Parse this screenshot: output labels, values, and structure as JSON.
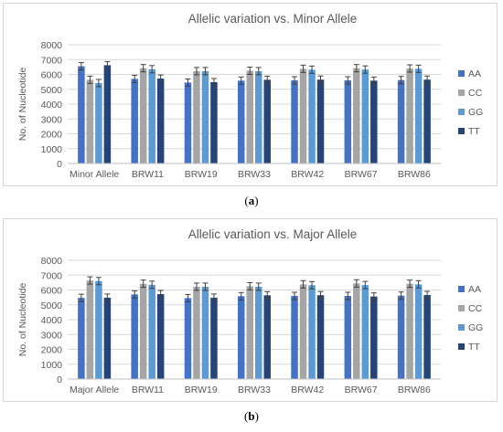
{
  "chart_data": [
    {
      "type": "bar",
      "title": "Allelic variation vs. Minor Allele",
      "ylabel": "No. of Nucleotide",
      "xlabel": "",
      "ylim": [
        0,
        8000
      ],
      "yticks": [
        0,
        1000,
        2000,
        3000,
        4000,
        5000,
        6000,
        7000,
        8000
      ],
      "categories": [
        "Minor Allele",
        "BRW11",
        "BRW19",
        "BRW33",
        "BRW42",
        "BRW67",
        "BRW86"
      ],
      "series": [
        {
          "name": "AA",
          "color": "#4472c4",
          "values": [
            6550,
            5700,
            5450,
            5580,
            5600,
            5600,
            5620
          ]
        },
        {
          "name": "CC",
          "color": "#a5a5a5",
          "values": [
            5640,
            6420,
            6220,
            6250,
            6380,
            6420,
            6400
          ]
        },
        {
          "name": "GG",
          "color": "#5b9bd5",
          "values": [
            5420,
            6350,
            6220,
            6220,
            6320,
            6330,
            6380
          ]
        },
        {
          "name": "TT",
          "color": "#264478",
          "values": [
            6620,
            5720,
            5480,
            5640,
            5650,
            5580,
            5650
          ]
        }
      ],
      "error_bars": true,
      "grid": true,
      "legend": "right",
      "caption_label": "a"
    },
    {
      "type": "bar",
      "title": "Allelic variation vs. Major Allele",
      "ylabel": "No. of Nucleotide",
      "xlabel": "",
      "ylim": [
        0,
        8000
      ],
      "yticks": [
        0,
        1000,
        2000,
        3000,
        4000,
        5000,
        6000,
        7000,
        8000
      ],
      "categories": [
        "Major Allele",
        "BRW11",
        "BRW19",
        "BRW33",
        "BRW42",
        "BRW67",
        "BRW86"
      ],
      "series": [
        {
          "name": "AA",
          "color": "#4472c4",
          "values": [
            5470,
            5700,
            5450,
            5580,
            5600,
            5600,
            5620
          ]
        },
        {
          "name": "CC",
          "color": "#a5a5a5",
          "values": [
            6640,
            6420,
            6220,
            6250,
            6380,
            6440,
            6420
          ]
        },
        {
          "name": "GG",
          "color": "#5b9bd5",
          "values": [
            6600,
            6350,
            6220,
            6220,
            6320,
            6330,
            6380
          ]
        },
        {
          "name": "TT",
          "color": "#264478",
          "values": [
            5480,
            5720,
            5480,
            5640,
            5650,
            5560,
            5660
          ]
        }
      ],
      "error_bars": true,
      "grid": true,
      "legend": "right",
      "caption_label": "b"
    }
  ]
}
